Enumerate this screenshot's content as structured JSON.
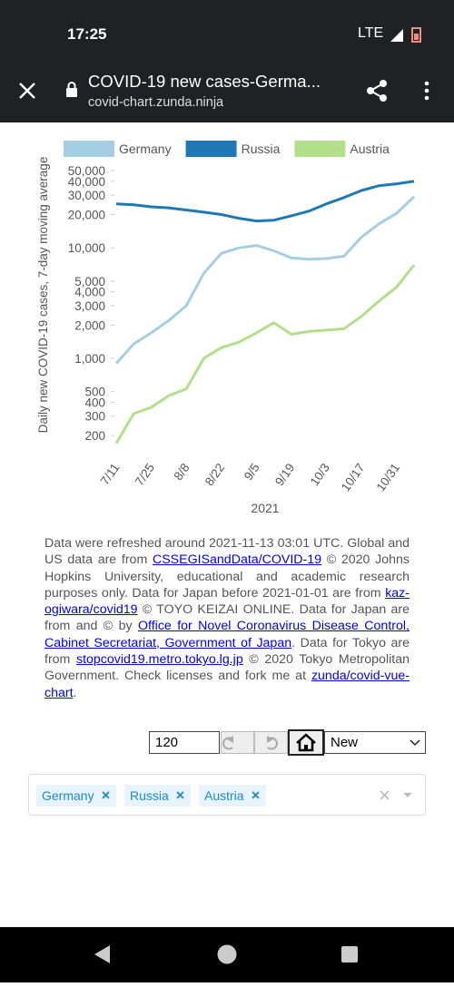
{
  "status_bar": {
    "time": "17:25",
    "network": "LTE"
  },
  "browser": {
    "title": "COVID-19 new cases-Germa...",
    "url": "covid-chart.zunda.ninja"
  },
  "chart_data": {
    "type": "line",
    "y_label": "Daily new COVID-19 cases, 7-day moving average",
    "x_label": "2021",
    "log_scale": true,
    "grid": false,
    "categories": [
      "7/11",
      null,
      "7/25",
      null,
      "8/8",
      null,
      "8/22",
      null,
      "9/5",
      null,
      "9/19",
      null,
      "10/3",
      null,
      "10/17",
      null,
      "10/31",
      null
    ],
    "series": [
      {
        "name": "Germany",
        "color": "#a6cee3",
        "values": [
          900,
          1350,
          1700,
          2200,
          3000,
          5900,
          8900,
          10000,
          10500,
          9400,
          8100,
          7900,
          8000,
          8400,
          12500,
          16500,
          20500,
          29000
        ]
      },
      {
        "name": "Russia",
        "color": "#1f78b4",
        "values": [
          25000,
          24500,
          23500,
          23000,
          22000,
          21000,
          20000,
          18500,
          17500,
          17800,
          19500,
          21500,
          25000,
          28500,
          33000,
          36500,
          38000,
          40000
        ]
      },
      {
        "name": "Austria",
        "color": "#b2df8a",
        "values": [
          170,
          316,
          360,
          460,
          530,
          1000,
          1250,
          1400,
          1700,
          2100,
          1650,
          1750,
          1800,
          1850,
          2400,
          3300,
          4400,
          7000
        ]
      }
    ],
    "ylim": [
      125,
      55000
    ],
    "yticks": [
      200,
      300,
      400,
      500,
      {
        "value": 1000,
        "label": "1,000"
      },
      {
        "value": 2000,
        "label": "2,000"
      },
      {
        "value": 3000,
        "label": "3,000"
      },
      {
        "value": 4000,
        "label": "4,000"
      },
      {
        "value": 5000,
        "label": "5,000"
      },
      {
        "value": 10000,
        "label": "10,000"
      },
      {
        "value": 20000,
        "label": "20,000"
      },
      {
        "value": 30000,
        "label": "30,000"
      },
      {
        "value": 40000,
        "label": "40,000"
      },
      {
        "value": 50000,
        "label": "50,000"
      }
    ]
  },
  "notes": [
    {
      "text": "Data were refreshed around 2021-11-13 03:01 UTC. Global and US data are from "
    },
    {
      "text": "CSSEGISandData/COVID-19",
      "link": true
    },
    {
      "text": " © 2020 Johns Hopkins University, educational and academic research purposes only. Data for Japan before 2021-01-01 are from "
    },
    {
      "text": "kaz-ogiwara/covid19",
      "link": true
    },
    {
      "text": " © TOYO KEIZAI ONLINE. Data for Japan are from and © by "
    },
    {
      "text": "Office for Novel Coronavirus Disease Control, Cabinet Secretariat, Government of Japan",
      "link": true
    },
    {
      "text": ". Data for Tokyo are from "
    },
    {
      "text": "stopcovid19.metro.tokyo.lg.jp",
      "link": true
    },
    {
      "text": " © 2020 Tokyo Metropolitan Government. Check licenses and fork me at "
    },
    {
      "text": "zunda/covid-vue-chart",
      "link": true
    },
    {
      "text": "."
    }
  ],
  "controls": {
    "days": "120",
    "mode": "New"
  },
  "selected": [
    "Germany",
    "Russia",
    "Austria"
  ]
}
